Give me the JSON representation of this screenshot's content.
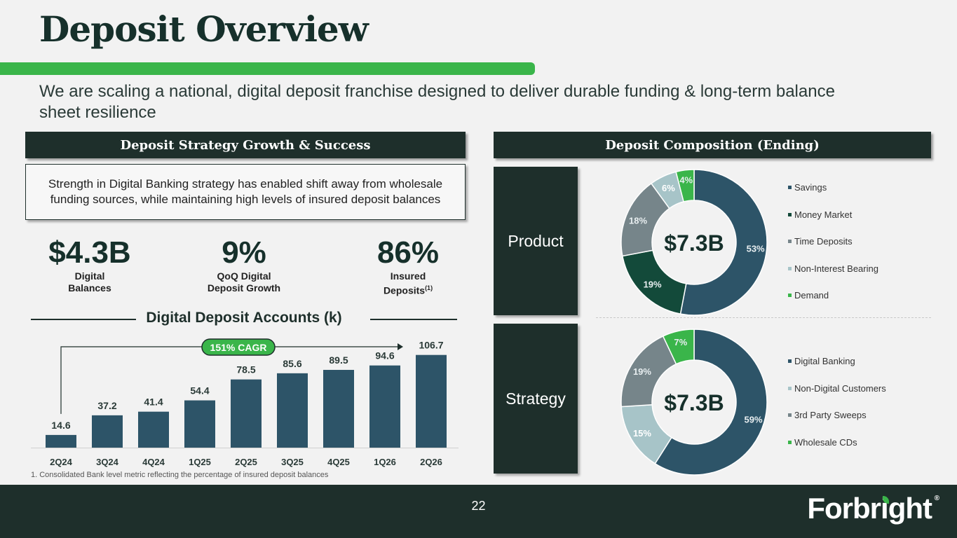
{
  "title": "Deposit Overview",
  "subtitle": "We are scaling a national, digital deposit franchise designed to deliver durable funding & long-term balance sheet resilience",
  "left_header": "Deposit Strategy Growth & Success",
  "right_header": "Deposit Composition (Ending)",
  "callout": "Strength in Digital Banking strategy has enabled shift away from wholesale funding sources, while maintaining high levels of insured deposit balances",
  "stats": [
    {
      "value": "$4.3B",
      "label": "Digital\nBalances",
      "sup": ""
    },
    {
      "value": "9%",
      "label": "QoQ Digital\nDeposit Growth",
      "sup": ""
    },
    {
      "value": "86%",
      "label": "Insured\nDeposits",
      "sup": "(1)"
    }
  ],
  "accounts_title": "Digital Deposit Accounts (k)",
  "cagr_label": "151% CAGR",
  "footnote": "1.    Consolidated Bank level metric reflecting the percentage of insured deposit balances",
  "product_label": "Product",
  "strategy_label": "Strategy",
  "page_number": "22",
  "logo_text": "Forbright",
  "logo_mark": "®",
  "colors": {
    "dark": "#1e2f2b",
    "green": "#3ab54a",
    "bar": "#2d5468"
  },
  "chart_data": [
    {
      "type": "bar",
      "title": "Digital Deposit Accounts (k)",
      "categories": [
        "2Q24",
        "3Q24",
        "4Q24",
        "1Q25",
        "2Q25",
        "3Q25",
        "4Q25",
        "1Q26",
        "2Q26"
      ],
      "values": [
        14.6,
        37.2,
        41.4,
        54.4,
        78.5,
        85.6,
        89.5,
        94.6,
        106.7
      ],
      "labels": [
        "14.6",
        "37.2",
        "41.4",
        "54.4",
        "78.5",
        "85.6",
        "89.5",
        "94.6",
        "106.7"
      ],
      "ylim": [
        0,
        125
      ],
      "grid": false,
      "color": "#2d5468"
    },
    {
      "type": "pie",
      "name": "Product",
      "center_label": "$7.3B",
      "slices": [
        {
          "label": "Savings",
          "value": 53,
          "text": "53%",
          "color": "#2d5468"
        },
        {
          "label": "Money Market",
          "value": 19,
          "text": "19%",
          "color": "#134a3a"
        },
        {
          "label": "Time Deposits",
          "value": 18,
          "text": "18%",
          "color": "#76858a"
        },
        {
          "label": "Non-Interest Bearing",
          "value": 6,
          "text": "6%",
          "color": "#a7c4c8"
        },
        {
          "label": "Demand",
          "value": 4,
          "text": "4%",
          "color": "#3ab54a"
        }
      ]
    },
    {
      "type": "pie",
      "name": "Strategy",
      "center_label": "$7.3B",
      "slices": [
        {
          "label": "Digital Banking",
          "value": 59,
          "text": "59%",
          "color": "#2d5468"
        },
        {
          "label": "Non-Digital Customers",
          "value": 15,
          "text": "15%",
          "color": "#a7c4c8"
        },
        {
          "label": "3rd Party Sweeps",
          "value": 19,
          "text": "19%",
          "color": "#76858a"
        },
        {
          "label": "Wholesale CDs",
          "value": 7,
          "text": "7%",
          "color": "#3ab54a"
        }
      ]
    }
  ]
}
